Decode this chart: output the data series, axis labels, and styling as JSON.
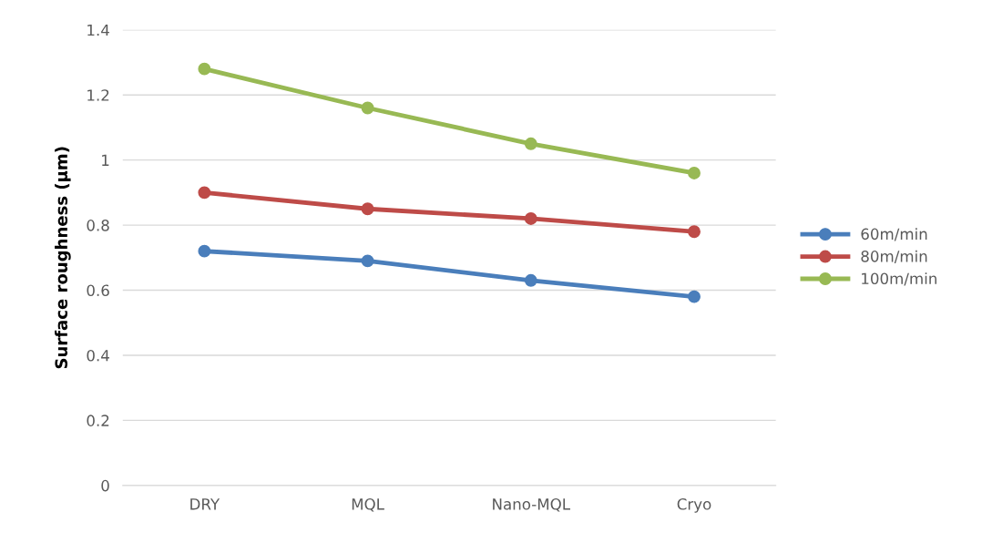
{
  "chart_data": {
    "type": "line",
    "ylabel": "Surface roughness (µm)",
    "categories": [
      "DRY",
      "MQL",
      "Nano-MQL",
      "Cryo"
    ],
    "series": [
      {
        "name": "60m/min",
        "color": "#4a7ebb",
        "values": [
          0.72,
          0.69,
          0.63,
          0.58
        ]
      },
      {
        "name": "80m/min",
        "color": "#be4b48",
        "values": [
          0.9,
          0.85,
          0.82,
          0.78
        ]
      },
      {
        "name": "100m/min",
        "color": "#98b954",
        "values": [
          1.28,
          1.16,
          1.05,
          0.96
        ]
      }
    ],
    "ylim": [
      0,
      1.4
    ],
    "yticks": [
      0,
      0.2,
      0.4,
      0.6,
      0.8,
      1,
      1.2,
      1.4
    ],
    "grid": "y",
    "legend": "right",
    "marker": "circle",
    "line_style": "solid"
  }
}
